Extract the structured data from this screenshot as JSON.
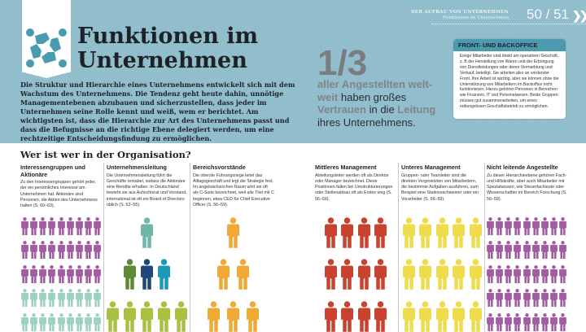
{
  "header": {
    "section": "DER AUFBAU VON UNTERNEHMEN",
    "subsection": "Funktionen im Unternehmen",
    "pages": "50 / 51"
  },
  "title_line1": "Funktionen im",
  "title_line2": "Unternehmen",
  "intro": "Die Struktur und Hierarchie eines Unternehmens entwickelt sich mit dem Wachstum des Unternehmens. Die Tendenz geht heute dahin, unnötige Managementebenen abzubauen und sicherzustellen, dass jeder im Unternehmen seine Rolle kennt und weiß, wem er berichtet. Am wichtigsten ist, dass die Hierarchie zur Art des Unternehmens passt und dass die Befugnisse an die richtige Ebene delegiert werden, um eine rechtzeitige Entscheidungsfindung zu ermöglichen.",
  "stat": {
    "value": "1/3",
    "t1": "aller Angestellten welt-weit",
    "t2": " haben großes ",
    "t3": "Vertrauen",
    "t4": " in die ",
    "t5": "Leitung",
    "t6": " ihres Unternehmens."
  },
  "box": {
    "title": "FRONT- UND BACKOFFICE",
    "text": "Einige Mitarbeiter sind direkt am operativen Geschäft, z. B der Herstellung von Waren und der Erbringung von Dienstleistungen oder deren Vermarktung und Verkauf, beteiligt. Sie arbeiten also an vorderster Front. Ihre Arbeit ist wichtig, aber sie können ohne die Unterstützung von Mitarbeitern im Backoffice nicht funktionieren. Hierzu gehören Personen in Bereichen wie Finanzen, IT und Personalwesen. Beide Gruppen müssen gut zusammenarbeiten, um einen reibungslosen Geschäftsbetrieb zu ermöglichen."
  },
  "section_title": "Wer ist wer in der Organisation?",
  "columns": [
    {
      "title": "Interessengruppen und Aktionäre",
      "text": "Zu den Interessengruppen gehört jeder, der ein persönliches Interesse am Unternehmen hat. Aktionäre sind Personen, die Aktien des Unternehmens halten (S. 60–63).",
      "rows": [
        9,
        9,
        9,
        9,
        9
      ],
      "colors": [
        "#a25ca1",
        "#a25ca1",
        "#a25ca1",
        "#9ed2c0",
        "#9ed2c0"
      ]
    },
    {
      "title": "Unternehmensleitung",
      "text": "Die Unternehmensleitung führt die Geschäfte rentabel, sodass die Aktionäre eine Rendite erhalten. In Deutschland besteht sie aus Aufsichtsrat und Vorstand, international ist oft ein Board of Directors üblich (S. 52–55).",
      "rows": [
        1,
        3,
        5
      ],
      "colors": [
        [
          "#6fb6a8"
        ],
        [
          "#5d8a36",
          "#1f477b",
          "#1d98b6"
        ],
        [
          "#a9c141"
        ]
      ]
    },
    {
      "title": "Bereichsvorstände",
      "text": "Die oberste Führungsriege leitet das Alltagsgeschäft und legt die Strategie fest. Im angelsächsischen Raum wird sie oft als C-Suite bezeichnet, weil alle Titel mit C beginnen, etwa CEO für Chief Executive Officer (S. 56–59).",
      "rows": [
        1,
        2,
        3
      ],
      "colors": [
        "#f0a934",
        "#f0a934",
        "#f0a934"
      ]
    },
    {
      "title": "Mittleres Management",
      "text": "Abteilungsleiter werden oft als Direktor oder Manager bezeichnet. Diese Positionen fallen bei Umstrukturierungen oder Stellenabbau oft als Erstes weg (S. 56–59).",
      "rows": [
        4,
        4,
        4
      ],
      "colors": [
        "#c9412f",
        "#c9412f",
        "#c9412f"
      ]
    },
    {
      "title": "Unteres Management",
      "text": "Gruppen- oder Teamleiter sind die direkten Vorgesetzten von Mitarbeitern, die bestimmte Aufgaben ausführen, zum Beispiel eine Stationsschwester oder ein Vorarbeiter (S. 56–59).",
      "rows": [
        5,
        5,
        5
      ],
      "colors": [
        "#efdc4c",
        "#efdc4c",
        "#efdc4c"
      ]
    },
    {
      "title": "Nicht leitende Angestellte",
      "text": "Zu dieser Hierarchieebene gehören Fach- und Hilfskräfte, aber auch Mitarbeiter mit Spezialwissen, wie Steuerfachleute oder Wissenschaftler im Bereich Forschung (S. 56–59).",
      "rows": [
        9,
        9,
        9,
        9,
        9
      ],
      "colors": [
        "#a25ca1",
        "#a25ca1",
        "#a25ca1",
        "#a25ca1",
        "#a25ca1"
      ]
    }
  ],
  "colors": {
    "background": "#8fbccb",
    "box_header": "#4c9aad",
    "logo": "#4a9bb0"
  }
}
